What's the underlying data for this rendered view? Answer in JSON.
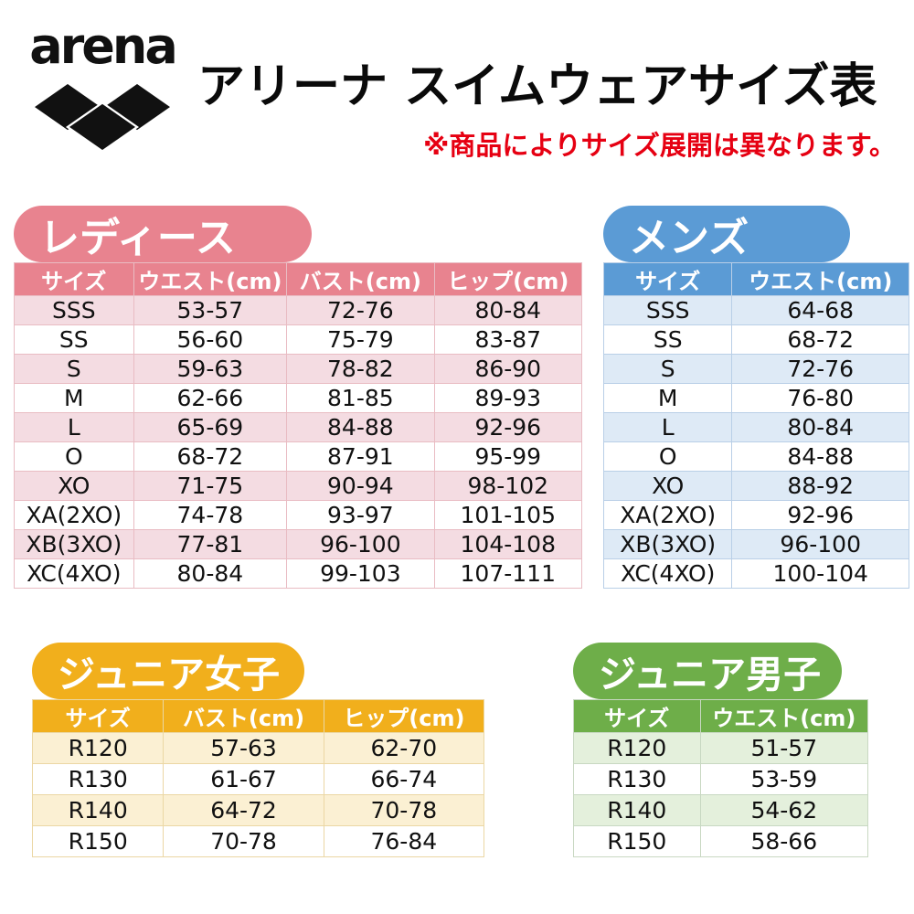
{
  "page": {
    "logo_text": "arena",
    "title": "アリーナ スイムウェアサイズ表",
    "notice": "※商品によりサイズ展開は異なります。"
  },
  "colors": {
    "logo_black": "#111111",
    "notice_red": "#E60012",
    "ladies_accent": "#E8838F",
    "ladies_tint": "#F4DCE2",
    "mens_accent": "#5B9BD5",
    "mens_tint": "#DEEAF6",
    "junior_girls_accent": "#F1AF1C",
    "junior_girls_tint": "#FBF0D3",
    "junior_boys_accent": "#6EAE49",
    "junior_boys_tint": "#E4F0DC"
  },
  "sections": {
    "ladies": {
      "badge": "レディース",
      "columns": [
        "サイズ",
        "ウエスト(cm)",
        "バスト(cm)",
        "ヒップ(cm)"
      ],
      "rows": [
        [
          "SSS",
          "53-57",
          "72-76",
          "80-84"
        ],
        [
          "SS",
          "56-60",
          "75-79",
          "83-87"
        ],
        [
          "S",
          "59-63",
          "78-82",
          "86-90"
        ],
        [
          "M",
          "62-66",
          "81-85",
          "89-93"
        ],
        [
          "L",
          "65-69",
          "84-88",
          "92-96"
        ],
        [
          "O",
          "68-72",
          "87-91",
          "95-99"
        ],
        [
          "XO",
          "71-75",
          "90-94",
          "98-102"
        ],
        [
          "XA(2XO)",
          "74-78",
          "93-97",
          "101-105"
        ],
        [
          "XB(3XO)",
          "77-81",
          "96-100",
          "104-108"
        ],
        [
          "XC(4XO)",
          "80-84",
          "99-103",
          "107-111"
        ]
      ]
    },
    "mens": {
      "badge": "メンズ",
      "columns": [
        "サイズ",
        "ウエスト(cm)"
      ],
      "rows": [
        [
          "SSS",
          "64-68"
        ],
        [
          "SS",
          "68-72"
        ],
        [
          "S",
          "72-76"
        ],
        [
          "M",
          "76-80"
        ],
        [
          "L",
          "80-84"
        ],
        [
          "O",
          "84-88"
        ],
        [
          "XO",
          "88-92"
        ],
        [
          "XA(2XO)",
          "92-96"
        ],
        [
          "XB(3XO)",
          "96-100"
        ],
        [
          "XC(4XO)",
          "100-104"
        ]
      ]
    },
    "junior_girls": {
      "badge": "ジュニア女子",
      "columns": [
        "サイズ",
        "バスト(cm)",
        "ヒップ(cm)"
      ],
      "rows": [
        [
          "R120",
          "57-63",
          "62-70"
        ],
        [
          "R130",
          "61-67",
          "66-74"
        ],
        [
          "R140",
          "64-72",
          "70-78"
        ],
        [
          "R150",
          "70-78",
          "76-84"
        ]
      ]
    },
    "junior_boys": {
      "badge": "ジュニア男子",
      "columns": [
        "サイズ",
        "ウエスト(cm)"
      ],
      "rows": [
        [
          "R120",
          "51-57"
        ],
        [
          "R130",
          "53-59"
        ],
        [
          "R140",
          "54-62"
        ],
        [
          "R150",
          "58-66"
        ]
      ]
    }
  }
}
